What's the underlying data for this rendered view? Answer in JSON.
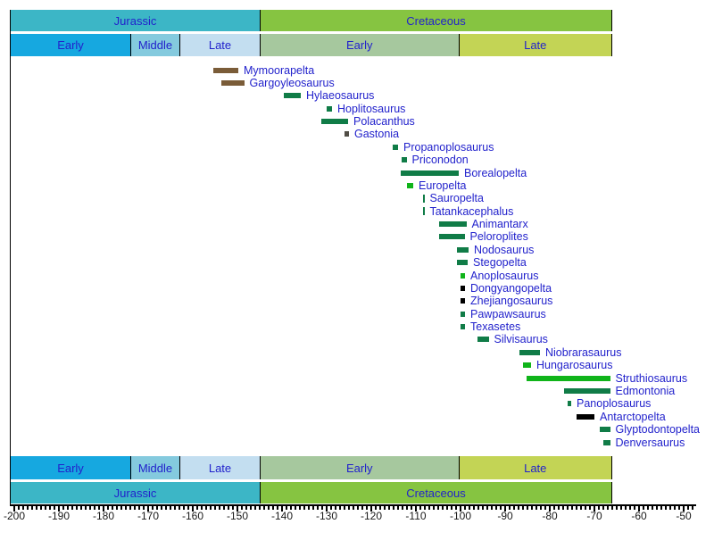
{
  "chart_data": {
    "type": "bar",
    "subtype": "taxon-temporal-range-timeline",
    "orientation": "horizontal",
    "x_unit": "Ma (millions of years)",
    "xlim": [
      -201,
      -47.5
    ],
    "grid": false,
    "tick_labels": [
      "-200",
      "-190",
      "-180",
      "-170",
      "-160",
      "-150",
      "-140",
      "-130",
      "-120",
      "-110",
      "-100",
      "-90",
      "-80",
      "-70",
      "-60",
      "-50"
    ],
    "axis": {
      "major_step": 10,
      "minor_step": 1,
      "minor_start": -200,
      "minor_end": -48
    },
    "periods": [
      {
        "label": "Jurassic",
        "start": -201,
        "end": -145,
        "color": "#3cb6c6"
      },
      {
        "label": "Cretaceous",
        "start": -145,
        "end": -66,
        "color": "#86c441"
      }
    ],
    "epochs": [
      {
        "label": "Early",
        "start": -201,
        "end": -174,
        "color": "#16a8e0"
      },
      {
        "label": "Middle",
        "start": -174,
        "end": -163,
        "color": "#84cade"
      },
      {
        "label": "Late",
        "start": -163,
        "end": -145,
        "color": "#c3def0"
      },
      {
        "label": "Early",
        "start": -145,
        "end": -100.5,
        "color": "#a6c89e"
      },
      {
        "label": "Late",
        "start": -100.5,
        "end": -66,
        "color": "#c3d455"
      }
    ],
    "series": [
      {
        "name": "Mymoorapelta",
        "range": [
          -155.4,
          -149.8
        ],
        "color_key": "brown"
      },
      {
        "name": "Gargoyleosaurus",
        "range": [
          -153.7,
          -148.5
        ],
        "color_key": "brown"
      },
      {
        "name": "Hylaeosaurus",
        "range": [
          -139.6,
          -135.8
        ],
        "color_key": "dark_green"
      },
      {
        "name": "Hoplitosaurus",
        "range": [
          -130.0,
          -128.8
        ],
        "color_key": "dark_green"
      },
      {
        "name": "Polacanthus",
        "range": [
          -131.2,
          -125.2
        ],
        "color_key": "dark_green"
      },
      {
        "name": "Gastonia",
        "range": [
          -126.0,
          -125.0
        ],
        "color_key": "gray"
      },
      {
        "name": "Propanoplosaurus",
        "range": [
          -115.2,
          -114.0
        ],
        "color_key": "dark_green"
      },
      {
        "name": "Priconodon",
        "range": [
          -113.2,
          -112.1
        ],
        "color_key": "dark_green"
      },
      {
        "name": "Borealopelta",
        "range": [
          -113.5,
          -100.4
        ],
        "color_key": "dark_green"
      },
      {
        "name": "Europelta",
        "range": [
          -112.1,
          -110.6
        ],
        "color_key": "bright_green"
      },
      {
        "name": "Sauropelta",
        "range": [
          -108.5,
          -108.1
        ],
        "color_key": "dark_green",
        "style": "tick"
      },
      {
        "name": "Tatankacephalus",
        "range": [
          -108.5,
          -108.1
        ],
        "color_key": "dark_green",
        "style": "tick"
      },
      {
        "name": "Animantarx",
        "range": [
          -104.9,
          -98.7
        ],
        "color_key": "dark_green"
      },
      {
        "name": "Peloroplites",
        "range": [
          -104.9,
          -99.1
        ],
        "color_key": "dark_green"
      },
      {
        "name": "Nodosaurus",
        "range": [
          -100.9,
          -98.2
        ],
        "color_key": "dark_green"
      },
      {
        "name": "Stegopelta",
        "range": [
          -100.9,
          -98.4
        ],
        "color_key": "dark_green"
      },
      {
        "name": "Anoplosaurus",
        "range": [
          -100.0,
          -99.0
        ],
        "color_key": "bright_green"
      },
      {
        "name": "Dongyangopelta",
        "range": [
          -100.0,
          -99.0
        ],
        "color_key": "black"
      },
      {
        "name": "Zhejiangosaurus",
        "range": [
          -100.0,
          -99.0
        ],
        "color_key": "black"
      },
      {
        "name": "Pawpawsaurus",
        "range": [
          -100.0,
          -99.0
        ],
        "color_key": "dark_green"
      },
      {
        "name": "Texasetes",
        "range": [
          -100.0,
          -99.0
        ],
        "color_key": "dark_green"
      },
      {
        "name": "Silvisaurus",
        "range": [
          -96.3,
          -93.7
        ],
        "color_key": "dark_green"
      },
      {
        "name": "Niobrarasaurus",
        "range": [
          -86.9,
          -82.2
        ],
        "color_key": "dark_green"
      },
      {
        "name": "Hungarosaurus",
        "range": [
          -86.0,
          -84.2
        ],
        "color_key": "bright_green"
      },
      {
        "name": "Struthiosaurus",
        "range": [
          -85.2,
          -66.5
        ],
        "color_key": "bright_green"
      },
      {
        "name": "Edmontonia",
        "range": [
          -76.9,
          -66.5
        ],
        "color_key": "dark_green"
      },
      {
        "name": "Panoplosaurus",
        "range": [
          -76.0,
          -75.2
        ],
        "color_key": "dark_green"
      },
      {
        "name": "Antarctopelta",
        "range": [
          -74.0,
          -70.0
        ],
        "color_key": "black"
      },
      {
        "name": "Glyptodontopelta",
        "range": [
          -68.9,
          -66.5
        ],
        "color_key": "dark_green"
      },
      {
        "name": "Denversaurus",
        "range": [
          -68.0,
          -66.5
        ],
        "color_key": "dark_green"
      }
    ]
  },
  "colors": {
    "bar_palette": {
      "brown": "#7a5c38",
      "dark_green": "#107c47",
      "bright_green": "#10b41a",
      "black": "#000000",
      "gray": "#514e46"
    },
    "label_blue": "#2222cc",
    "axis_black": "#1a1a1a",
    "background": "#ffffff",
    "border": "#000000"
  }
}
